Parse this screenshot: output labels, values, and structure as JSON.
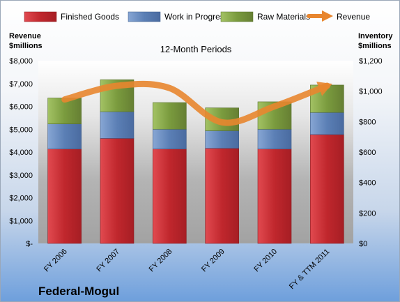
{
  "chart_data": {
    "type": "bar",
    "stacked": true,
    "subtitle": "12-Month Periods",
    "company": "Federal-Mogul",
    "categories": [
      "FY 2006",
      "FY 2007",
      "FY 2008",
      "FY 2009",
      "FY 2010",
      "FY & TTM 2011"
    ],
    "series": [
      {
        "name": "Finished Goods",
        "axis": "right",
        "color": "#c0272d",
        "values": [
          620,
          690,
          620,
          625,
          620,
          715
        ]
      },
      {
        "name": "Work in Progress",
        "axis": "right",
        "color": "#5b7fb5",
        "values": [
          165,
          175,
          130,
          115,
          130,
          145
        ]
      },
      {
        "name": "Raw Materials",
        "axis": "right",
        "color": "#7a9b3e",
        "values": [
          170,
          210,
          175,
          150,
          180,
          180
        ]
      }
    ],
    "line_series": {
      "name": "Revenue",
      "axis": "left",
      "color": "#e8862f",
      "values": [
        6300,
        6900,
        6800,
        5300,
        6000,
        6900
      ]
    },
    "left_axis": {
      "title_lines": [
        "Revenue",
        "$millions"
      ],
      "ylim": [
        0,
        8000
      ],
      "tick_values": [
        0,
        1000,
        2000,
        3000,
        4000,
        5000,
        6000,
        7000,
        8000
      ],
      "tick_labels": [
        "$-",
        "$1,000",
        "$2,000",
        "$3,000",
        "$4,000",
        "$5,000",
        "$6,000",
        "$7,000",
        "$8,000"
      ]
    },
    "right_axis": {
      "title_lines": [
        "Inventory",
        "$millions"
      ],
      "ylim": [
        0,
        1200
      ],
      "tick_values": [
        0,
        200,
        400,
        600,
        800,
        1000,
        1200
      ],
      "tick_labels": [
        "$0",
        "$200",
        "$400",
        "$600",
        "$800",
        "$1,000",
        "$1,200"
      ]
    },
    "legend_position": "top",
    "grid": false
  }
}
